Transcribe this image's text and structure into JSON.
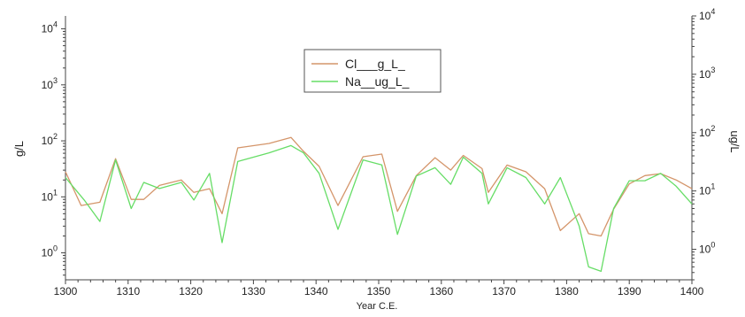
{
  "chart_data": {
    "type": "line",
    "xlabel": "Year C.E.",
    "ylabel_left": "g/L",
    "ylabel_right": "ug/L",
    "xlim": [
      1300,
      1400
    ],
    "x_ticks": [
      1300,
      1310,
      1320,
      1330,
      1340,
      1350,
      1360,
      1370,
      1380,
      1390,
      1400
    ],
    "y_scale": "log",
    "ylim_left": [
      0.33,
      17000
    ],
    "ylim_right": [
      0.3,
      10000
    ],
    "y_ticks_left": [
      1,
      10,
      100,
      1000,
      10000
    ],
    "y_ticks_right": [
      1,
      10,
      100,
      1000,
      10000
    ],
    "y_tick_labels": [
      {
        "base": "10",
        "exp": "0"
      },
      {
        "base": "10",
        "exp": "1"
      },
      {
        "base": "10",
        "exp": "2"
      },
      {
        "base": "10",
        "exp": "3"
      },
      {
        "base": "10",
        "exp": "4"
      }
    ],
    "grid": false,
    "legend_position": "top-center",
    "series": [
      {
        "name": "Cl___g_L_",
        "axis": "left",
        "color": "#d4956a",
        "x": [
          1300,
          1302.5,
          1305.5,
          1308,
          1310.5,
          1312.5,
          1315,
          1318.5,
          1320.5,
          1323,
          1325,
          1327.5,
          1332.5,
          1336,
          1338,
          1340.5,
          1343.5,
          1347.5,
          1350.5,
          1353,
          1356,
          1359,
          1361.5,
          1363.5,
          1366.5,
          1367.5,
          1370.5,
          1373.5,
          1376.5,
          1379,
          1382,
          1383.5,
          1385.5,
          1387.5,
          1390,
          1392.5,
          1395,
          1397.5,
          1400
        ],
        "values": [
          28,
          7,
          8,
          48,
          9,
          9,
          16,
          20,
          12,
          14,
          5,
          75,
          90,
          115,
          65,
          35,
          7,
          52,
          58,
          5.5,
          24,
          50,
          30,
          55,
          32,
          12,
          37,
          28,
          14,
          2.5,
          5,
          2.2,
          2,
          6,
          17,
          24,
          26,
          20,
          14
        ]
      },
      {
        "name": "Na__ug_L_",
        "axis": "right",
        "color": "#66dd66",
        "x": [
          1300,
          1303,
          1305.5,
          1308,
          1310.5,
          1312.5,
          1315,
          1318.5,
          1320.5,
          1323,
          1325,
          1327.5,
          1332.5,
          1336,
          1338,
          1340.5,
          1343.5,
          1347.5,
          1350.5,
          1353,
          1356,
          1359,
          1361.5,
          1363.5,
          1366.5,
          1367.5,
          1370.5,
          1373.5,
          1376.5,
          1379,
          1382,
          1383.5,
          1385.5,
          1387.5,
          1390,
          1392.5,
          1395,
          1397.5,
          1400
        ],
        "values": [
          17,
          7,
          3,
          34,
          5,
          14,
          11,
          14,
          7,
          20,
          1.3,
          32,
          45,
          60,
          45,
          20,
          2.2,
          34,
          28,
          1.8,
          18,
          25,
          13,
          38,
          20,
          6,
          25,
          17,
          6,
          17,
          2.5,
          0.5,
          0.42,
          5,
          15,
          15,
          20,
          12,
          6
        ]
      }
    ]
  }
}
